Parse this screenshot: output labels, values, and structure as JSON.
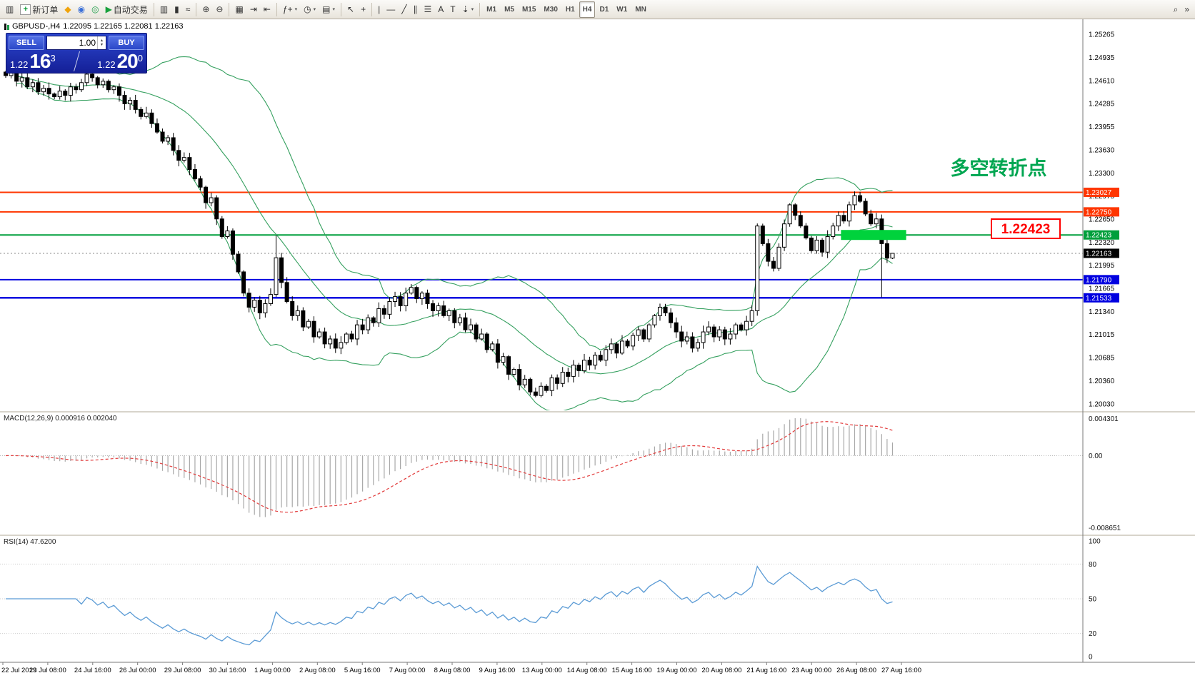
{
  "toolbar": {
    "caret_glyph": "▾",
    "buttons": [
      {
        "name": "chart-window",
        "glyph": "▥"
      },
      {
        "name": "new-order",
        "glyph": "+",
        "label": "新订单",
        "box": true
      },
      {
        "name": "mql5",
        "glyph": "◆",
        "color": "#f0a30a"
      },
      {
        "name": "profile",
        "glyph": "◉",
        "color": "#3a6fd8"
      },
      {
        "name": "community",
        "glyph": "◎",
        "color": "#1e9e4a"
      },
      {
        "name": "auto-trading",
        "glyph": "▶",
        "label": "自动交易",
        "color": "#18a03c"
      },
      {
        "sep": true
      },
      {
        "name": "bar-chart",
        "glyph": "▥"
      },
      {
        "name": "candlestick-chart",
        "glyph": "▮"
      },
      {
        "name": "line-chart",
        "glyph": "≈"
      },
      {
        "sep": true
      },
      {
        "name": "zoom-in",
        "glyph": "⊕"
      },
      {
        "name": "zoom-out",
        "glyph": "⊖"
      },
      {
        "sep": true
      },
      {
        "name": "tile-windows",
        "glyph": "▦"
      },
      {
        "name": "auto-scroll",
        "glyph": "⇥"
      },
      {
        "name": "chart-shift",
        "glyph": "⇤"
      },
      {
        "sep": true
      },
      {
        "name": "indicators",
        "glyph": "ƒ+",
        "caret": true
      },
      {
        "name": "periods",
        "glyph": "◷",
        "caret": true
      },
      {
        "name": "templates",
        "glyph": "▤",
        "caret": true
      },
      {
        "sep": true
      },
      {
        "name": "cursor",
        "glyph": "↖"
      },
      {
        "name": "crosshair",
        "glyph": "+"
      },
      {
        "sep": true
      },
      {
        "name": "vertical-line",
        "glyph": "|"
      },
      {
        "name": "horizontal-line",
        "glyph": "—"
      },
      {
        "name": "trendline",
        "glyph": "╱"
      },
      {
        "name": "equidistant-channel",
        "glyph": "∥"
      },
      {
        "name": "fibonacci",
        "glyph": "☰"
      },
      {
        "name": "text",
        "glyph": "A"
      },
      {
        "name": "text-label",
        "glyph": "T"
      },
      {
        "name": "arrow-objects",
        "glyph": "⇣",
        "caret": true
      },
      {
        "sep": true
      }
    ],
    "timeframes": [
      "M1",
      "M5",
      "M15",
      "M30",
      "H1",
      "H4",
      "D1",
      "W1",
      "MN"
    ],
    "active_timeframe": "H4",
    "right_icons": [
      {
        "name": "search",
        "glyph": "⌕"
      },
      {
        "name": "toolbar-overflow",
        "glyph": "»"
      }
    ]
  },
  "chart_title": {
    "symbol": "GBPUSD-,H4",
    "ohlc": "1.22095 1.22165 1.22081 1.22163"
  },
  "trade_panel": {
    "sell_label": "SELL",
    "buy_label": "BUY",
    "volume": "1.00",
    "spinner_up": "▴",
    "spinner_down": "▾",
    "bid": {
      "prefix": "1.22",
      "big": "16",
      "sup": "3"
    },
    "ask": {
      "prefix": "1.22",
      "big": "20",
      "sup": "0"
    }
  },
  "annotations": {
    "turning_point": {
      "text": "多空转折点",
      "color": "#00a651"
    },
    "price_callout": {
      "text": "1.22423",
      "color": "#ff0000"
    },
    "highlight_zone": {
      "price": 1.22423,
      "color": "#00d23c",
      "from_bar": 155,
      "to_bar": 166
    }
  },
  "chart_data": {
    "type": "candlestick",
    "symbol": "GBPUSD",
    "timeframe": "H4",
    "price_range": {
      "top": 1.25265,
      "bottom": 1.2003
    },
    "price_axis": [
      "1.25265",
      "1.24935",
      "1.24610",
      "1.24285",
      "1.23955",
      "1.23630",
      "1.23300",
      "1.22975",
      "1.22650",
      "1.22320",
      "1.21995",
      "1.21665",
      "1.21340",
      "1.21015",
      "1.20685",
      "1.20360",
      "1.20030"
    ],
    "time_axis": [
      "22 Jul 2019",
      "23 Jul 08:00",
      "24 Jul 16:00",
      "26 Jul 00:00",
      "29 Jul 08:00",
      "30 Jul 16:00",
      "1 Aug 00:00",
      "2 Aug 08:00",
      "5 Aug 16:00",
      "7 Aug 00:00",
      "8 Aug 08:00",
      "9 Aug 16:00",
      "13 Aug 00:00",
      "14 Aug 08:00",
      "15 Aug 16:00",
      "19 Aug 00:00",
      "20 Aug 08:00",
      "21 Aug 16:00",
      "23 Aug 00:00",
      "26 Aug 08:00",
      "27 Aug 16:00"
    ],
    "lines": [
      {
        "price": 1.23027,
        "label": "1.23027",
        "color": "#ff3600",
        "width": 2
      },
      {
        "price": 1.2275,
        "label": "1.22750",
        "color": "#ff3600",
        "width": 2
      },
      {
        "price": 1.22423,
        "label": "1.22423",
        "color": "#009f3c",
        "width": 2
      },
      {
        "price": 1.2179,
        "label": "1.21790",
        "color": "#0000e0",
        "width": 2
      },
      {
        "price": 1.21533,
        "label": "1.21533",
        "color": "#0000e0",
        "width": 2.5
      }
    ],
    "current_price": {
      "value": 1.22163,
      "label": "1.22163"
    },
    "bollinger": {
      "period": 20,
      "deviation": 2,
      "color": "#35a05f"
    },
    "candles": {
      "closes": [
        1.2468,
        1.2472,
        1.246,
        1.2465,
        1.2452,
        1.2458,
        1.2445,
        1.245,
        1.2442,
        1.2438,
        1.2446,
        1.244,
        1.2452,
        1.2448,
        1.2458,
        1.247,
        1.2465,
        1.2455,
        1.246,
        1.2448,
        1.2452,
        1.244,
        1.2428,
        1.2433,
        1.242,
        1.241,
        1.2415,
        1.24,
        1.2388,
        1.2375,
        1.238,
        1.2362,
        1.2348,
        1.2352,
        1.2335,
        1.2322,
        1.231,
        1.2288,
        1.2295,
        1.2265,
        1.224,
        1.2248,
        1.2215,
        1.219,
        1.216,
        1.214,
        1.215,
        1.2132,
        1.2145,
        1.2158,
        1.221,
        1.2175,
        1.2148,
        1.2128,
        1.2135,
        1.2112,
        1.212,
        1.2098,
        1.2105,
        1.2088,
        1.2095,
        1.2082,
        1.209,
        1.2102,
        1.2095,
        1.2115,
        1.2108,
        1.2125,
        1.2118,
        1.2138,
        1.213,
        1.2148,
        1.2155,
        1.2142,
        1.216,
        1.2168,
        1.2152,
        1.216,
        1.2145,
        1.2135,
        1.2142,
        1.2128,
        1.2135,
        1.2118,
        1.2125,
        1.2108,
        1.2115,
        1.2095,
        1.2102,
        1.208,
        1.2088,
        1.2062,
        1.207,
        1.2045,
        1.2052,
        1.203,
        1.2038,
        1.202,
        1.2015,
        1.2028,
        1.2022,
        1.204,
        1.2032,
        1.2048,
        1.2042,
        1.2058,
        1.205,
        1.2065,
        1.2058,
        1.2072,
        1.2065,
        1.208,
        1.2088,
        1.2075,
        1.2092,
        1.2085,
        1.21,
        1.2108,
        1.2095,
        1.2115,
        1.2128,
        1.214,
        1.2132,
        1.2118,
        1.2105,
        1.2092,
        1.2098,
        1.2082,
        1.209,
        1.2105,
        1.2112,
        1.2098,
        1.2108,
        1.2095,
        1.2102,
        1.2115,
        1.2108,
        1.212,
        1.2135,
        1.2255,
        1.223,
        1.2205,
        1.2195,
        1.2225,
        1.2258,
        1.2285,
        1.227,
        1.2255,
        1.2238,
        1.222,
        1.2235,
        1.2218,
        1.224,
        1.2255,
        1.227,
        1.2262,
        1.2285,
        1.2298,
        1.229,
        1.2272,
        1.2258,
        1.2265,
        1.223,
        1.22095,
        1.22163
      ],
      "overrides": {
        "50": {
          "h": 1.2242
        },
        "139": {
          "l": 1.2128
        },
        "157": {
          "h": 1.2304
        },
        "162": {
          "l": 1.2154
        },
        "164": {
          "h": 1.22165,
          "l": 1.22081
        }
      }
    },
    "macd": {
      "label": "MACD(12,26,9)",
      "values_text": "0.000916 0.002040",
      "axis": [
        "0.004301",
        "0.00",
        "-0.008651"
      ]
    },
    "rsi": {
      "label": "RSI(14)",
      "value_text": "47.6200",
      "axis": [
        "100",
        "80",
        "50",
        "20",
        "0"
      ],
      "levels": [
        80,
        50,
        20
      ]
    }
  }
}
